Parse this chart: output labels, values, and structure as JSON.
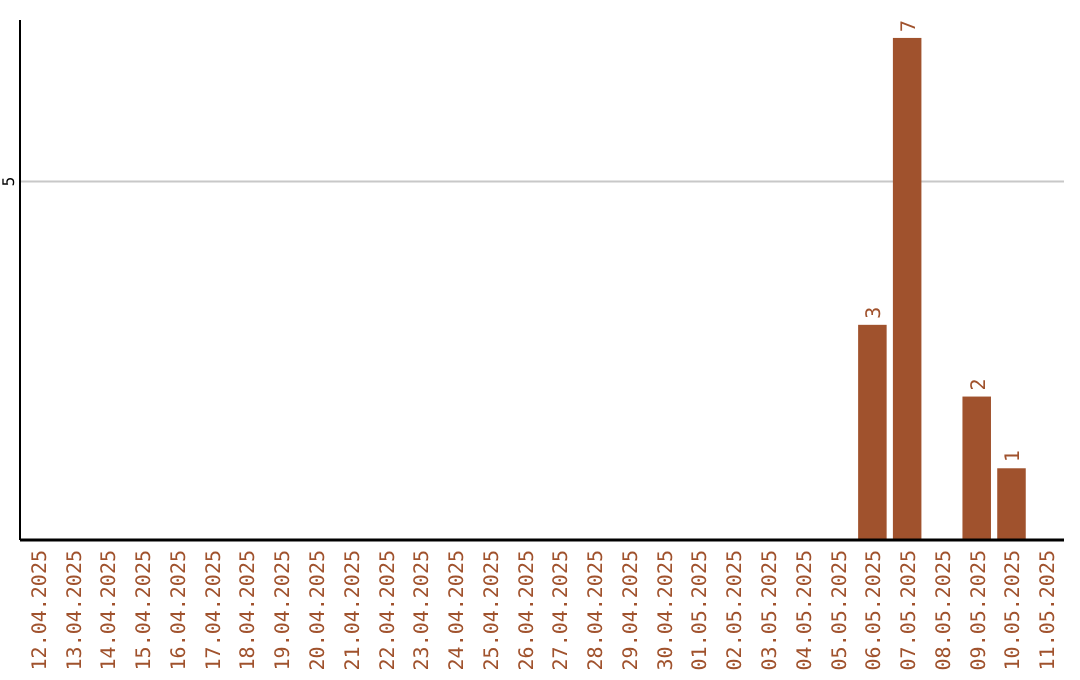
{
  "chart_data": {
    "type": "bar",
    "categories": [
      "12.04.2025",
      "13.04.2025",
      "14.04.2025",
      "15.04.2025",
      "16.04.2025",
      "17.04.2025",
      "18.04.2025",
      "19.04.2025",
      "20.04.2025",
      "21.04.2025",
      "22.04.2025",
      "23.04.2025",
      "24.04.2025",
      "25.04.2025",
      "26.04.2025",
      "27.04.2025",
      "28.04.2025",
      "29.04.2025",
      "30.04.2025",
      "01.05.2025",
      "02.05.2025",
      "03.05.2025",
      "04.05.2025",
      "05.05.2025",
      "06.05.2025",
      "07.05.2025",
      "08.05.2025",
      "09.05.2025",
      "10.05.2025",
      "11.05.2025"
    ],
    "values": [
      null,
      null,
      null,
      null,
      null,
      null,
      null,
      null,
      null,
      null,
      null,
      null,
      null,
      null,
      null,
      null,
      null,
      null,
      null,
      null,
      null,
      null,
      null,
      null,
      3,
      7,
      null,
      2,
      1,
      null
    ],
    "color": "#a0522d",
    "ylim": [
      0,
      7.25
    ],
    "yticks": [
      5
    ],
    "grid": "y",
    "data_labels": true
  }
}
